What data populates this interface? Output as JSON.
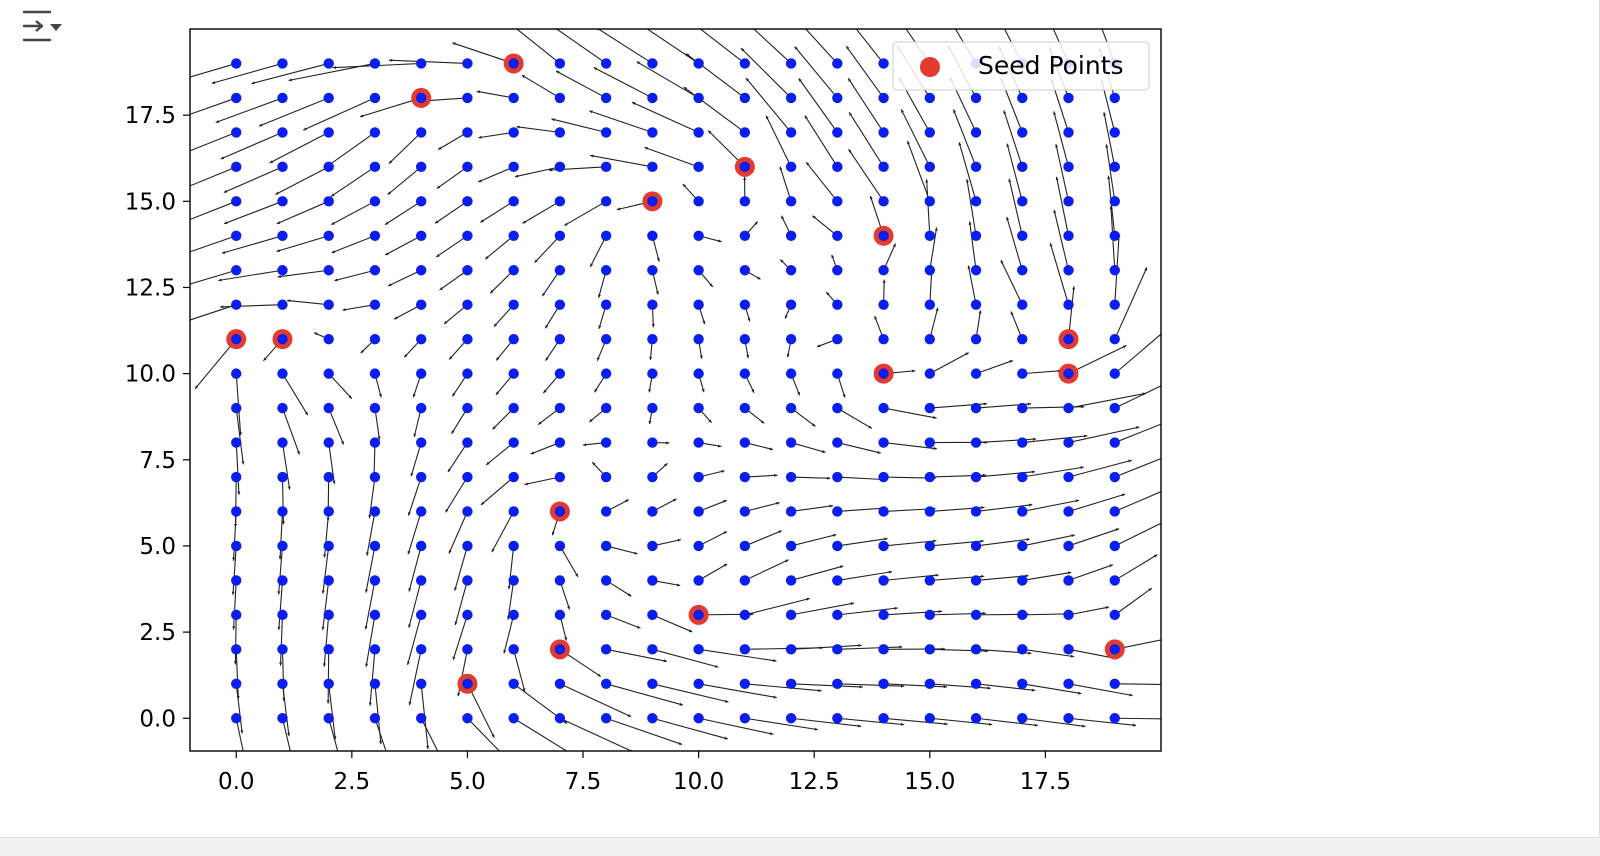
{
  "toolbar": {
    "output_icon": "output-settings-icon"
  },
  "chart_data": {
    "type": "scatter",
    "title": "",
    "xlabel": "",
    "ylabel": "",
    "xlim": [
      -1,
      20
    ],
    "ylim": [
      -0.95,
      20
    ],
    "xticks": [
      0,
      2.5,
      5,
      7.5,
      10,
      12.5,
      15,
      17.5
    ],
    "xtick_labels": [
      "0.0",
      "2.5",
      "5.0",
      "7.5",
      "10.0",
      "12.5",
      "15.0",
      "17.5"
    ],
    "yticks": [
      0,
      2.5,
      5,
      7.5,
      10,
      12.5,
      15,
      17.5
    ],
    "ytick_labels": [
      "0.0",
      "2.5",
      "5.0",
      "7.5",
      "10.0",
      "12.5",
      "15.0",
      "17.5"
    ],
    "grid": false,
    "legend": {
      "position": "top-right",
      "entries": [
        {
          "label": "Seed Points",
          "color": "#e53a2e"
        }
      ]
    },
    "grid_points": {
      "x_range": [
        0,
        19
      ],
      "y_range": [
        0,
        19
      ],
      "step": 1,
      "color": "#0a1ef0"
    },
    "seed_points": {
      "name": "Seed Points",
      "color": "#e53a2e",
      "x": [
        6,
        4,
        11,
        9,
        14,
        0,
        1,
        18,
        14,
        18,
        7,
        10,
        7,
        19,
        5
      ],
      "y": [
        19,
        18,
        16,
        15,
        14,
        11,
        11,
        11,
        10,
        10,
        6,
        3,
        2,
        2,
        1
      ]
    },
    "vector_field": {
      "type": "quiver",
      "color": "#222222"
    }
  },
  "colors": {
    "grid_points": "#0a1ef0",
    "seed_points": "#e53a2e",
    "arrows": "#222222",
    "axes": "#000000"
  }
}
